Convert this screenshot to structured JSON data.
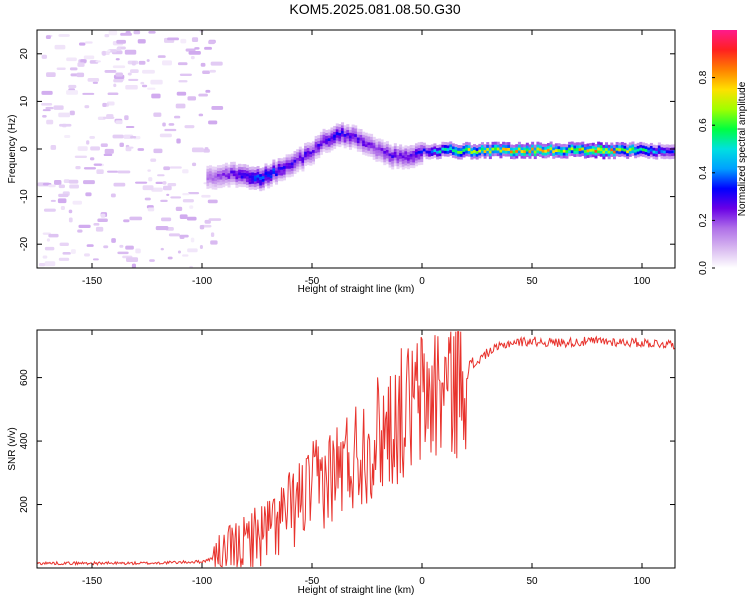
{
  "title": "KOM5.2025.081.08.50.G30",
  "colors": {
    "snr_line": "#e8322c",
    "colormap": [
      "#ffffff",
      "#d8b8f0",
      "#b070e8",
      "#6a00e6",
      "#0000ff",
      "#00a0ff",
      "#00e0e0",
      "#00ff40",
      "#a0ff00",
      "#ffe000",
      "#ff8000",
      "#ff2020",
      "#ff1a8c"
    ]
  },
  "chart_data": [
    {
      "type": "heatmap",
      "xlabel": "Height of straight line (km)",
      "ylabel": "Frequency (Hz)",
      "xlim": [
        -175,
        115
      ],
      "ylim": [
        -25,
        25
      ],
      "xticks": [
        -150,
        -100,
        -50,
        0,
        50,
        100
      ],
      "yticks": [
        -20,
        -10,
        0,
        10,
        20
      ],
      "colorbar": {
        "label": "Normalized spectral amplitude",
        "range": [
          0,
          1
        ],
        "ticks": [
          "0.0",
          "0.2",
          "0.4",
          "0.6",
          "0.8"
        ]
      },
      "ridge": {
        "description_points": [
          {
            "x": -95,
            "y": -5.5,
            "v": 0.2
          },
          {
            "x": -85,
            "y": -5,
            "v": 0.3
          },
          {
            "x": -75,
            "y": -6,
            "v": 0.45
          },
          {
            "x": -65,
            "y": -4,
            "v": 0.35
          },
          {
            "x": -58,
            "y": -2.5,
            "v": 0.3
          },
          {
            "x": -50,
            "y": 0,
            "v": 0.3
          },
          {
            "x": -45,
            "y": 2,
            "v": 0.3
          },
          {
            "x": -38,
            "y": 3.5,
            "v": 0.35
          },
          {
            "x": -30,
            "y": 2.5,
            "v": 0.3
          },
          {
            "x": -22,
            "y": 0.5,
            "v": 0.25
          },
          {
            "x": -15,
            "y": -1,
            "v": 0.3
          },
          {
            "x": -8,
            "y": -1.5,
            "v": 0.3
          },
          {
            "x": 0,
            "y": 0,
            "v": 0.35
          },
          {
            "x": 10,
            "y": 0,
            "v": 0.55
          },
          {
            "x": 20,
            "y": 0,
            "v": 0.7
          },
          {
            "x": 35,
            "y": 0,
            "v": 0.75
          },
          {
            "x": 50,
            "y": 0,
            "v": 0.8
          },
          {
            "x": 65,
            "y": 0,
            "v": 0.7
          },
          {
            "x": 80,
            "y": 0,
            "v": 0.9
          },
          {
            "x": 95,
            "y": 0,
            "v": 0.65
          },
          {
            "x": 110,
            "y": 0,
            "v": 0.4
          }
        ]
      }
    },
    {
      "type": "line",
      "xlabel": "Height of straight line (km)",
      "ylabel": "SNR (v/v)",
      "xlim": [
        -175,
        115
      ],
      "ylim": [
        0,
        750
      ],
      "xticks": [
        -150,
        -100,
        -50,
        0,
        50,
        100
      ],
      "yticks": [
        200,
        400,
        600
      ],
      "series": [
        {
          "x": [
            -175,
            -150,
            -125,
            -100,
            -90,
            -80,
            -70,
            -60,
            -50,
            -40,
            -30,
            -20,
            -10,
            0,
            10,
            20,
            30,
            40,
            50,
            60,
            70,
            80,
            90,
            100,
            115
          ],
          "y": [
            15,
            15,
            15,
            20,
            40,
            80,
            120,
            180,
            250,
            300,
            360,
            420,
            480,
            530,
            570,
            620,
            680,
            710,
            715,
            710,
            712,
            715,
            712,
            710,
            705
          ]
        }
      ]
    }
  ]
}
